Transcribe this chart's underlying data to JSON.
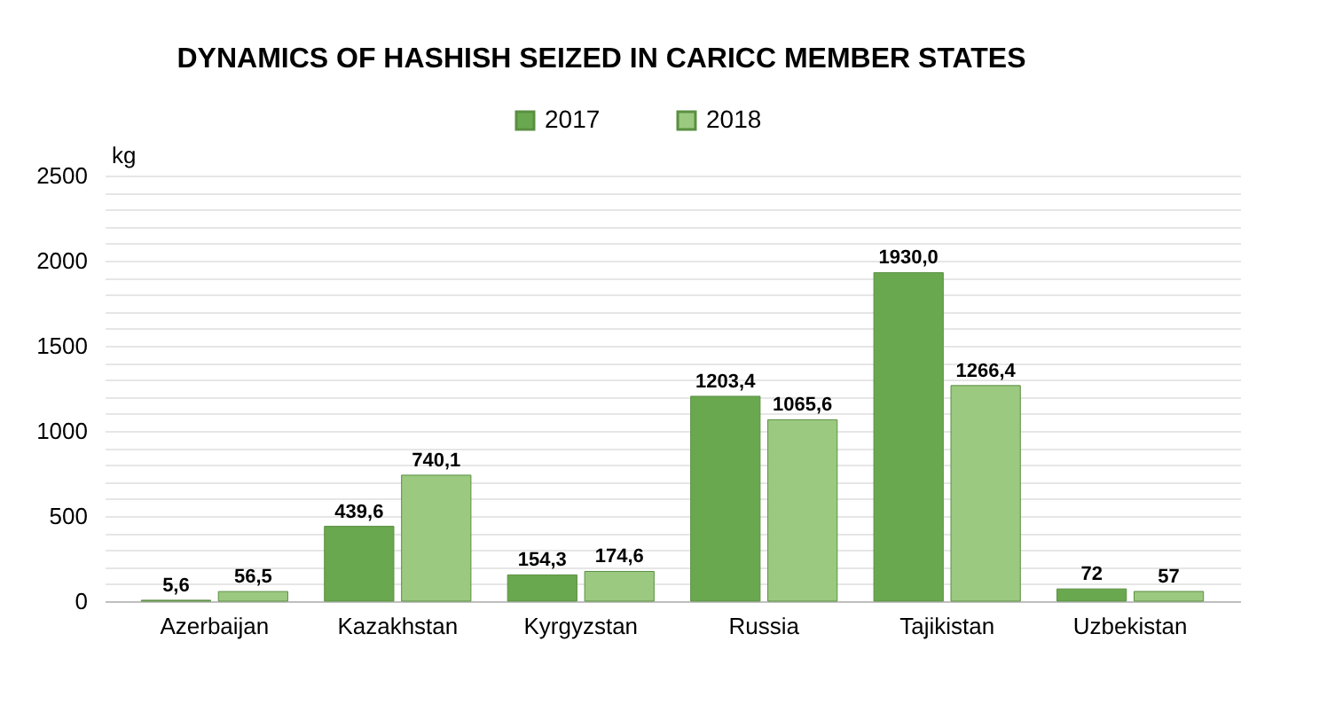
{
  "chart_data": {
    "type": "bar",
    "title": "DYNAMICS OF HASHISH SEIZED IN CARICC MEMBER STATES",
    "ylabel": "kg",
    "categories": [
      "Azerbaijan",
      "Kazakhstan",
      "Kyrgyzstan",
      "Russia",
      "Tajikistan",
      "Uzbekistan"
    ],
    "series": [
      {
        "name": "2017",
        "color": "#6aa84f",
        "values": [
          5.6,
          439.6,
          154.3,
          1203.4,
          1930.0,
          72
        ],
        "value_labels": [
          "5,6",
          "439,6",
          "154,3",
          "1203,4",
          "1930,0",
          "72"
        ]
      },
      {
        "name": "2018",
        "color": "#9bc97f",
        "values": [
          56.5,
          740.1,
          174.6,
          1065.6,
          1266.4,
          57
        ],
        "value_labels": [
          "56,5",
          "740,1",
          "174,6",
          "1065,6",
          "1266,4",
          "57"
        ]
      }
    ],
    "ylim": [
      0,
      2500
    ],
    "yticks": [
      0,
      {
        "value": 100,
        "label": null
      },
      {
        "value": 200,
        "label": null
      },
      {
        "value": 300,
        "label": null
      },
      {
        "value": 400,
        "label": null
      },
      500,
      {
        "value": 600,
        "label": null
      },
      {
        "value": 700,
        "label": null
      },
      {
        "value": 800,
        "label": null
      },
      {
        "value": 900,
        "label": null
      },
      1000,
      {
        "value": 1100,
        "label": null
      },
      {
        "value": 1200,
        "label": null
      },
      {
        "value": 1300,
        "label": null
      },
      {
        "value": 1400,
        "label": null
      },
      1500,
      {
        "value": 1600,
        "label": null
      },
      {
        "value": 1700,
        "label": null
      },
      {
        "value": 1800,
        "label": null
      },
      {
        "value": 1900,
        "label": null
      },
      2000,
      {
        "value": 2100,
        "label": null
      },
      {
        "value": 2200,
        "label": null
      },
      {
        "value": 2300,
        "label": null
      },
      {
        "value": 2400,
        "label": null
      },
      2500
    ],
    "grid": "y",
    "legend": "top"
  }
}
